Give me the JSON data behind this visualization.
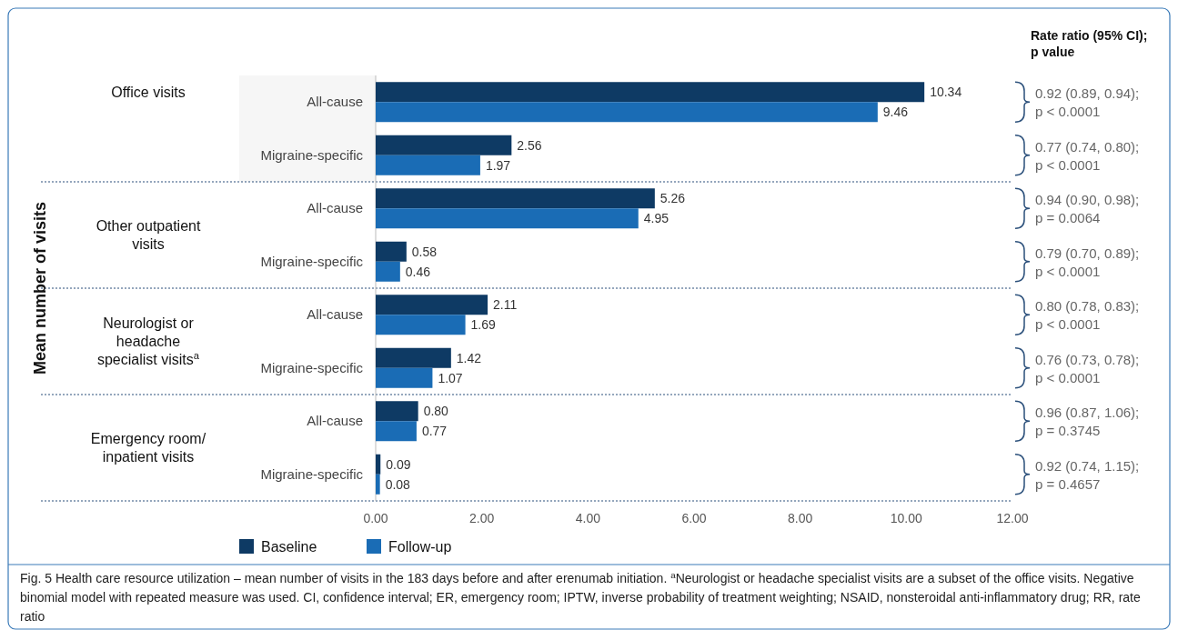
{
  "chart_data": {
    "type": "bar",
    "orientation": "horizontal",
    "categories": [
      "All-cause",
      "Migraine-specific",
      "All-cause",
      "Migraine-specific",
      "All-cause",
      "Migraine-specific",
      "All-cause",
      "Migraine-specific"
    ],
    "series": [
      {
        "name": "Baseline",
        "color": "#0e3a64",
        "values": [
          10.34,
          2.56,
          5.26,
          0.58,
          2.11,
          1.42,
          0.8,
          0.09
        ],
        "value_labels": [
          "10.34",
          "2.56",
          "5.26",
          "0.58",
          "2.11",
          "1.42",
          "0.80",
          "0.09"
        ]
      },
      {
        "name": "Follow-up",
        "color": "#1a6cb5",
        "values": [
          9.46,
          1.97,
          4.95,
          0.46,
          1.69,
          1.07,
          0.77,
          0.08
        ],
        "value_labels": [
          "9.46",
          "1.97",
          "4.95",
          "0.46",
          "1.69",
          "1.07",
          "0.77",
          "0.08"
        ]
      }
    ],
    "xlim": [
      0,
      12
    ],
    "xticks": [
      {
        "value": 0,
        "label": "0.00"
      },
      {
        "value": 2,
        "label": "2.00"
      },
      {
        "value": 4,
        "label": "4.00"
      },
      {
        "value": 6,
        "label": "6.00"
      },
      {
        "value": 8,
        "label": "8.00"
      },
      {
        "value": 10,
        "label": "10.00"
      },
      {
        "value": 12,
        "label": "12.00"
      }
    ],
    "legend": "bottom left",
    "annotations": [
      "Office visits",
      "Other outpatient visits",
      "Neurologist or headache specialist visits$^{a}$",
      "Emergency room/ inpatient visits",
      "Rate ratio (95% CI); p value",
      "0.92 (0.89, 0.94); p < 0.0001",
      "0.77 (0.74, 0.80); p < 0.0001",
      "0.94 (0.90, 0.98); p = 0.0064",
      "0.79 (0.70, 0.89); p < 0.0001",
      "0.80 (0.78, 0.83); p < 0.0001",
      "0.76 (0.73, 0.78); p < 0.0001",
      "0.96 (0.87, 1.06); p = 0.3745",
      "0.92 (0.74, 1.15); p = 0.4657",
      "Fig. 5 Health care resource utilization – mean number of visits in the 183 days before and after erenumab initiation. $^{a}$Neurologist or headache specialist visits are a subset of the office visits. Negative binomial model with repeated measure was used. CI, confidence interval; ER, emergency room; IPTW, inverse probability of treatment weighting; NSAID, nonsteroidal anti-inflammatory drug; RR, rate ratio",
      "Mean number of visits"
    ]
  }
}
